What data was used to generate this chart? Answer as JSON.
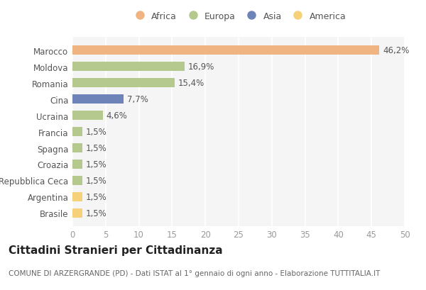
{
  "countries": [
    "Marocco",
    "Moldova",
    "Romania",
    "Cina",
    "Ucraina",
    "Francia",
    "Spagna",
    "Croazia",
    "Repubblica Ceca",
    "Argentina",
    "Brasile"
  ],
  "values": [
    46.2,
    16.9,
    15.4,
    7.7,
    4.6,
    1.5,
    1.5,
    1.5,
    1.5,
    1.5,
    1.5
  ],
  "labels": [
    "46,2%",
    "16,9%",
    "15,4%",
    "7,7%",
    "4,6%",
    "1,5%",
    "1,5%",
    "1,5%",
    "1,5%",
    "1,5%",
    "1,5%"
  ],
  "colors": [
    "#F0B482",
    "#B5C98E",
    "#B5C98E",
    "#6E84B8",
    "#B5C98E",
    "#B5C98E",
    "#B5C98E",
    "#B5C98E",
    "#B5C98E",
    "#F5D17A",
    "#F5D17A"
  ],
  "legend": [
    {
      "label": "Africa",
      "color": "#F0B482"
    },
    {
      "label": "Europa",
      "color": "#B5C98E"
    },
    {
      "label": "Asia",
      "color": "#6E84B8"
    },
    {
      "label": "America",
      "color": "#F5D17A"
    }
  ],
  "xlim": [
    0,
    50
  ],
  "xticks": [
    0,
    5,
    10,
    15,
    20,
    25,
    30,
    35,
    40,
    45,
    50
  ],
  "title": "Cittadini Stranieri per Cittadinanza",
  "subtitle": "COMUNE DI ARZERGRANDE (PD) - Dati ISTAT al 1° gennaio di ogni anno - Elaborazione TUTTITALIA.IT",
  "background_color": "#FFFFFF",
  "plot_bg_color": "#F5F5F5",
  "grid_color": "#FFFFFF",
  "bar_height": 0.55,
  "label_fontsize": 8.5,
  "tick_fontsize": 8.5,
  "title_fontsize": 11,
  "subtitle_fontsize": 7.5
}
